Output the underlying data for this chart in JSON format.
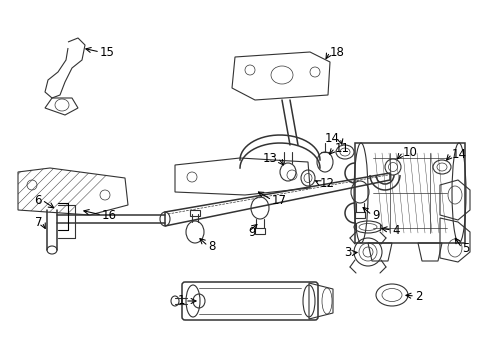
{
  "bg_color": "#ffffff",
  "line_color": "#333333",
  "text_color": "#000000",
  "figsize": [
    4.9,
    3.6
  ],
  "dpi": 100,
  "label_fs": 8.5,
  "lw_main": 1.1,
  "lw_med": 0.8,
  "lw_thin": 0.5
}
